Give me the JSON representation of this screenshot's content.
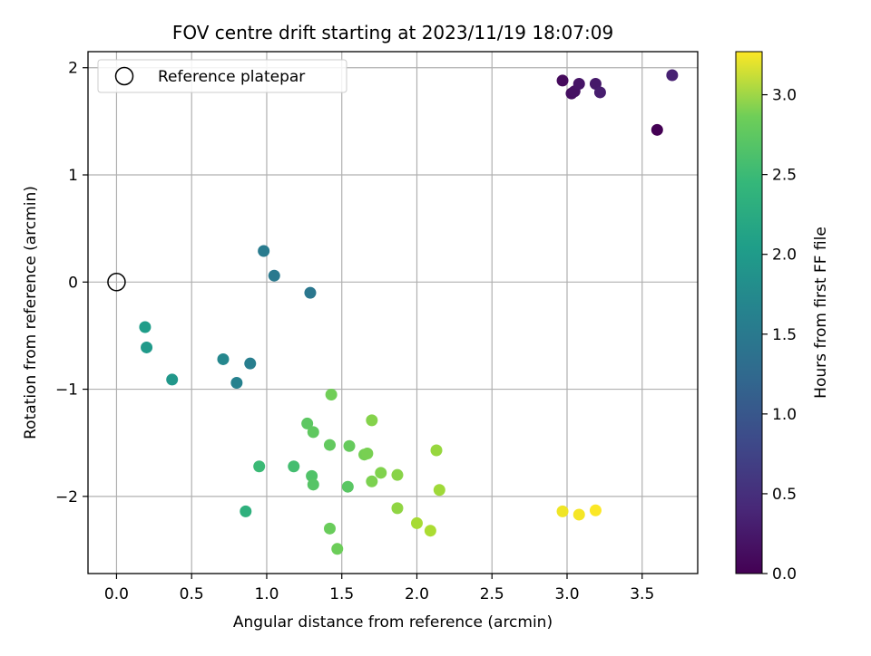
{
  "chart_data": {
    "type": "scatter",
    "title": "FOV centre drift starting at 2023/11/19 18:07:09",
    "xlabel": "Angular distance from reference (arcmin)",
    "ylabel": "Rotation from reference (arcmin)",
    "xlim": [
      -0.19,
      3.87
    ],
    "ylim": [
      -2.72,
      2.15
    ],
    "grid": true,
    "x_ticks": [
      "0.0",
      "0.5",
      "1.0",
      "1.5",
      "2.0",
      "2.5",
      "3.0",
      "3.5"
    ],
    "x_tick_values": [
      0.0,
      0.5,
      1.0,
      1.5,
      2.0,
      2.5,
      3.0,
      3.5
    ],
    "y_ticks": [
      "−2",
      "−1",
      "0",
      "1",
      "2"
    ],
    "y_tick_values": [
      -2,
      -1,
      0,
      1,
      2
    ],
    "legend": {
      "position": "upper-left",
      "entries": [
        {
          "label": "Reference platepar",
          "marker": "open-circle"
        }
      ]
    },
    "reference_point": {
      "x": 0.0,
      "y": 0.0
    },
    "colorbar": {
      "label": "Hours from first FF file",
      "colormap": "viridis",
      "range": [
        0.0,
        3.27
      ],
      "ticks": [
        "0.0",
        "0.5",
        "1.0",
        "1.5",
        "2.0",
        "2.5",
        "3.0"
      ],
      "tick_values": [
        0.0,
        0.5,
        1.0,
        1.5,
        2.0,
        2.5,
        3.0
      ]
    },
    "points": [
      {
        "x": 3.6,
        "y": 1.42,
        "hours": 0.0
      },
      {
        "x": 2.97,
        "y": 1.88,
        "hours": 0.08
      },
      {
        "x": 3.03,
        "y": 1.76,
        "hours": 0.12
      },
      {
        "x": 3.05,
        "y": 1.78,
        "hours": 0.15
      },
      {
        "x": 3.08,
        "y": 1.85,
        "hours": 0.18
      },
      {
        "x": 3.19,
        "y": 1.85,
        "hours": 0.22
      },
      {
        "x": 3.22,
        "y": 1.77,
        "hours": 0.26
      },
      {
        "x": 3.7,
        "y": 1.93,
        "hours": 0.3
      },
      {
        "x": 1.29,
        "y": -0.1,
        "hours": 1.3
      },
      {
        "x": 1.05,
        "y": 0.06,
        "hours": 1.33
      },
      {
        "x": 0.98,
        "y": 0.29,
        "hours": 1.36
      },
      {
        "x": 0.89,
        "y": -0.76,
        "hours": 1.4
      },
      {
        "x": 0.8,
        "y": -0.94,
        "hours": 1.44
      },
      {
        "x": 0.71,
        "y": -0.72,
        "hours": 1.52
      },
      {
        "x": 0.37,
        "y": -0.91,
        "hours": 1.72
      },
      {
        "x": 0.2,
        "y": -0.61,
        "hours": 1.76
      },
      {
        "x": 0.19,
        "y": -0.42,
        "hours": 1.8
      },
      {
        "x": 0.86,
        "y": -2.14,
        "hours": 2.08
      },
      {
        "x": 0.95,
        "y": -1.72,
        "hours": 2.22
      },
      {
        "x": 1.18,
        "y": -1.72,
        "hours": 2.28
      },
      {
        "x": 1.3,
        "y": -1.81,
        "hours": 2.36
      },
      {
        "x": 1.31,
        "y": -1.89,
        "hours": 2.4
      },
      {
        "x": 1.54,
        "y": -1.91,
        "hours": 2.42
      },
      {
        "x": 1.27,
        "y": -1.32,
        "hours": 2.44
      },
      {
        "x": 1.31,
        "y": -1.4,
        "hours": 2.46
      },
      {
        "x": 1.42,
        "y": -1.52,
        "hours": 2.48
      },
      {
        "x": 1.55,
        "y": -1.53,
        "hours": 2.5
      },
      {
        "x": 1.42,
        "y": -2.3,
        "hours": 2.52
      },
      {
        "x": 1.47,
        "y": -2.49,
        "hours": 2.54
      },
      {
        "x": 1.43,
        "y": -1.05,
        "hours": 2.56
      },
      {
        "x": 1.65,
        "y": -1.61,
        "hours": 2.58
      },
      {
        "x": 1.67,
        "y": -1.6,
        "hours": 2.6
      },
      {
        "x": 1.7,
        "y": -1.86,
        "hours": 2.62
      },
      {
        "x": 1.76,
        "y": -1.78,
        "hours": 2.64
      },
      {
        "x": 1.7,
        "y": -1.29,
        "hours": 2.66
      },
      {
        "x": 1.87,
        "y": -1.8,
        "hours": 2.68
      },
      {
        "x": 1.87,
        "y": -2.11,
        "hours": 2.72
      },
      {
        "x": 2.13,
        "y": -1.57,
        "hours": 2.76
      },
      {
        "x": 2.15,
        "y": -1.94,
        "hours": 2.8
      },
      {
        "x": 2.0,
        "y": -2.25,
        "hours": 2.84
      },
      {
        "x": 2.09,
        "y": -2.32,
        "hours": 2.86
      },
      {
        "x": 2.97,
        "y": -2.14,
        "hours": 3.2
      },
      {
        "x": 3.08,
        "y": -2.17,
        "hours": 3.23
      },
      {
        "x": 3.19,
        "y": -2.13,
        "hours": 3.26
      }
    ]
  }
}
